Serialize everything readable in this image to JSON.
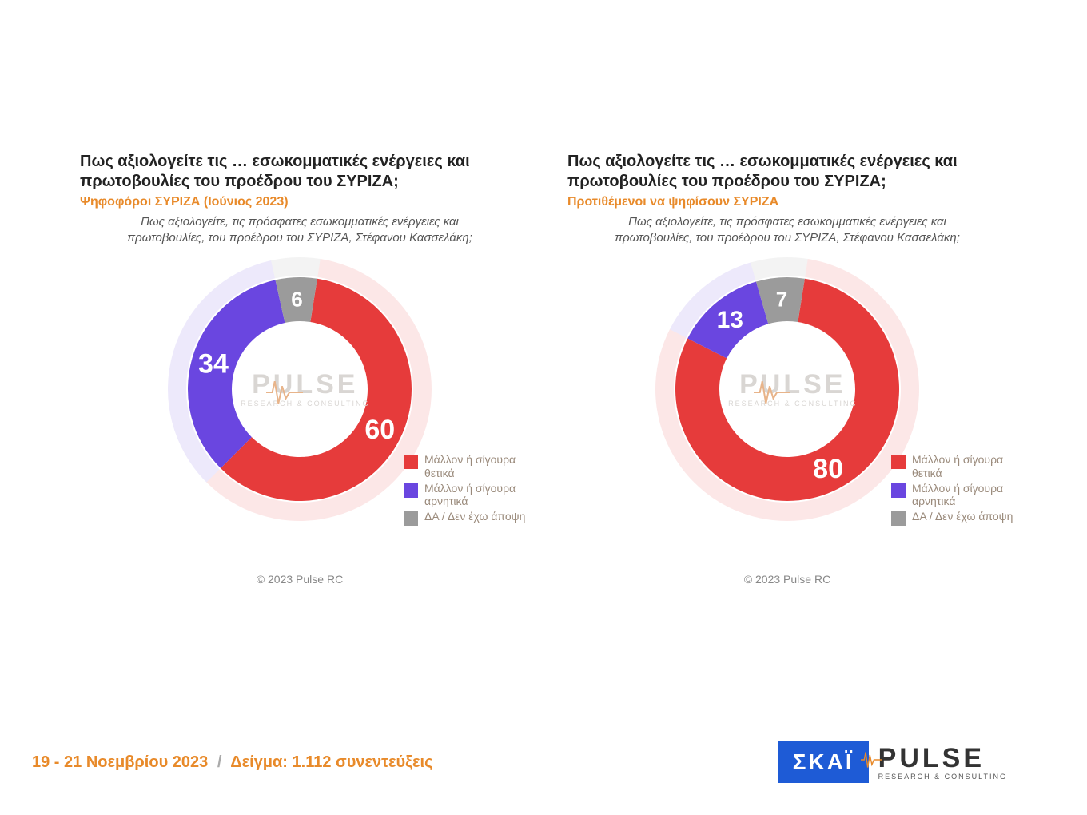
{
  "common": {
    "title": "Πως αξιολογείτε τις … εσωκομματικές ενέργειες και πρωτοβουλίες του προέδρου του ΣΥΡΙΖΑ;",
    "title_fontsize": 20,
    "title_color": "#222222",
    "question": "Πως αξιολογείτε, τις πρόσφατες εσωκομματικές ενέργειες και πρωτοβουλίες, του προέδρου του ΣΥΡΙΖΑ, Στέφανου Κασσελάκη;",
    "question_fontsize": 15,
    "question_color": "#555555",
    "legend": [
      {
        "label": "Μάλλον ή σίγουρα θετικά",
        "color": "#e63b3b"
      },
      {
        "label": "Μάλλον ή σίγουρα αρνητικά",
        "color": "#6a46e0"
      },
      {
        "label": "ΔΑ / Δεν έχω άποψη",
        "color": "#9b9b9b"
      }
    ],
    "legend_fontsize": 14,
    "legend_swatch_size": 18,
    "legend_text_color": "#9a8a7b",
    "copyright": "© 2023 Pulse RC",
    "copyright_fontsize": 14,
    "copyright_color": "#888888",
    "watermark_main": "PULSE",
    "watermark_sub": "RESEARCH & CONSULTING",
    "watermark_color": "#d9d6d3",
    "watermark_wave_color": "#e8b48a"
  },
  "charts": [
    {
      "type": "donut",
      "subtitle": "Ψηφοφόροι ΣΥΡΙΖΑ (Ιούνιος 2023)",
      "subtitle_color": "#e88a2a",
      "subtitle_fontsize": 16,
      "slices": [
        {
          "value": 60,
          "color": "#e63b3b",
          "label": "60",
          "label_fontsize": 34
        },
        {
          "value": 34,
          "color": "#6a46e0",
          "label": "34",
          "label_fontsize": 34
        },
        {
          "value": 6,
          "color": "#9b9b9b",
          "label": "6",
          "label_fontsize": 26
        }
      ],
      "inner_radius": 85,
      "outer_radius": 140,
      "halo_radius": 165,
      "start_angle_deg": -81,
      "background_color": "#ffffff"
    },
    {
      "type": "donut",
      "subtitle": "Προτιθέμενοι να ψηφίσουν ΣΥΡΙΖΑ",
      "subtitle_color": "#e88a2a",
      "subtitle_fontsize": 16,
      "slices": [
        {
          "value": 80,
          "color": "#e63b3b",
          "label": "80",
          "label_fontsize": 34
        },
        {
          "value": 13,
          "color": "#6a46e0",
          "label": "13",
          "label_fontsize": 30
        },
        {
          "value": 7,
          "color": "#9b9b9b",
          "label": "7",
          "label_fontsize": 26
        }
      ],
      "inner_radius": 85,
      "outer_radius": 140,
      "halo_radius": 165,
      "start_angle_deg": -81,
      "background_color": "#ffffff"
    }
  ],
  "footer": {
    "date_range": "19 - 21  Νοεμβρίου  2023",
    "sample": "Δείγμα:  1.112 συνεντεύξεις",
    "fontsize": 20,
    "text_color": "#e88a2a",
    "slash_color": "#aaaaaa",
    "skai_text": "ΣΚΑΪ",
    "skai_bg": "#1e5bd6",
    "skai_fg": "#ffffff",
    "pulse_text": "PULSE",
    "pulse_sub": "RESEARCH & CONSULTING",
    "pulse_color": "#333333",
    "pulse_wave_color": "#e88a2a"
  }
}
